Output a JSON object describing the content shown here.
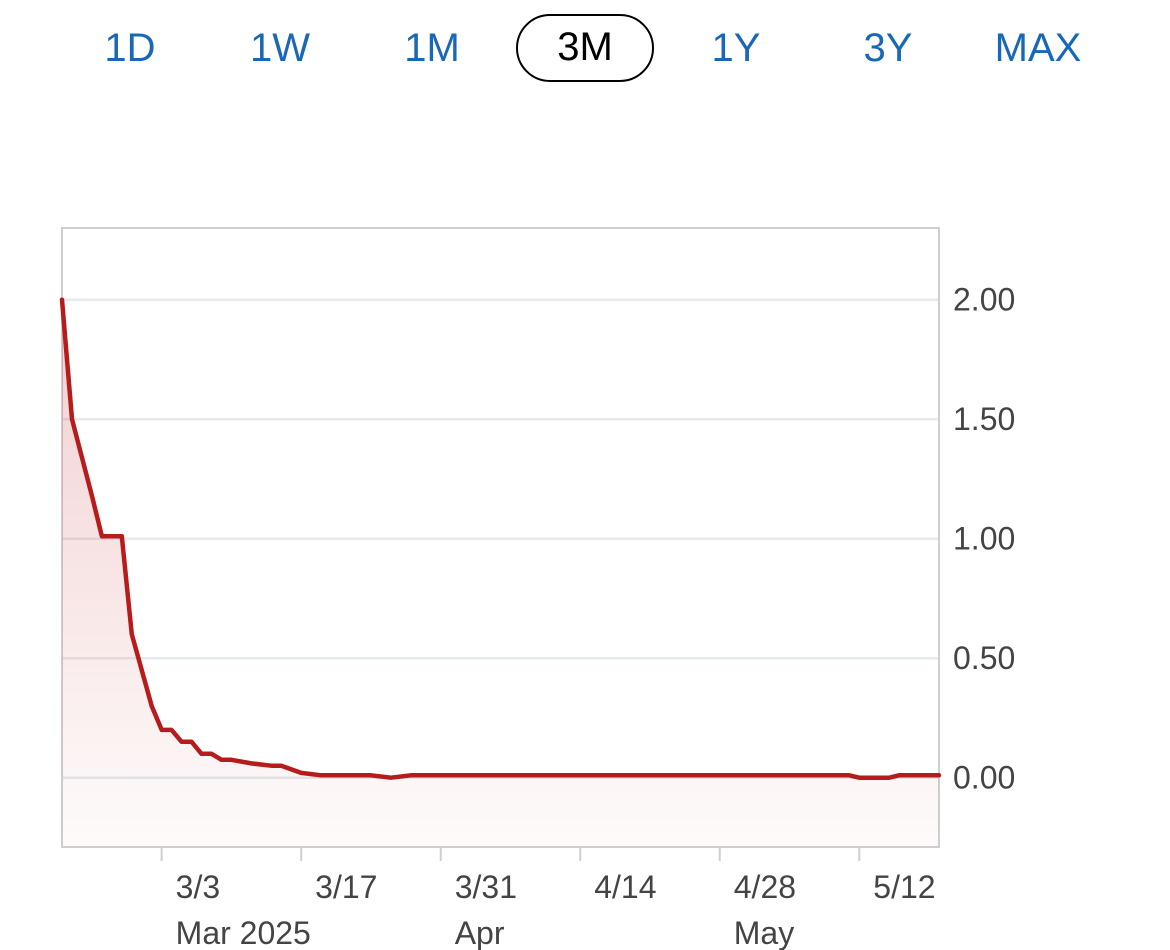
{
  "range_selector": {
    "buttons": [
      "1D",
      "1W",
      "1M",
      "3M",
      "1Y",
      "3Y",
      "MAX"
    ],
    "selected": "3M"
  },
  "colors": {
    "accent": "#1868b7",
    "line": "#b71c1c",
    "gridline": "#e4eaee",
    "frame": "#cfcfcf"
  },
  "chart_data": {
    "type": "area",
    "x_unit": "date",
    "y_axis_position": "right",
    "ylim": [
      -0.29,
      2.3
    ],
    "yticks": [
      "2.00",
      "1.50",
      "1.00",
      "0.50",
      "0.00"
    ],
    "ytick_values": [
      2.0,
      1.5,
      1.0,
      0.5,
      0.0
    ],
    "xticks": [
      {
        "date": "2025-03-03",
        "label": "3/3",
        "sublabel": "Mar 2025"
      },
      {
        "date": "2025-03-17",
        "label": "3/17",
        "sublabel": ""
      },
      {
        "date": "2025-03-31",
        "label": "3/31",
        "sublabel": "Apr"
      },
      {
        "date": "2025-04-14",
        "label": "4/14",
        "sublabel": ""
      },
      {
        "date": "2025-04-28",
        "label": "4/28",
        "sublabel": "May"
      },
      {
        "date": "2025-05-12",
        "label": "5/12",
        "sublabel": ""
      }
    ],
    "xlim": [
      "2025-02-21",
      "2025-05-20"
    ],
    "grid": true,
    "series": [
      {
        "x": [
          "2025-02-21",
          "2025-02-22",
          "2025-02-24",
          "2025-02-25",
          "2025-02-27",
          "2025-02-28",
          "2025-03-02",
          "2025-03-03",
          "2025-03-04",
          "2025-03-05",
          "2025-03-06",
          "2025-03-07",
          "2025-03-08",
          "2025-03-09",
          "2025-03-10",
          "2025-03-12",
          "2025-03-14",
          "2025-03-15",
          "2025-03-17",
          "2025-03-19",
          "2025-03-24",
          "2025-03-26",
          "2025-03-28",
          "2025-04-10",
          "2025-05-01",
          "2025-05-11",
          "2025-05-12",
          "2025-05-15",
          "2025-05-16",
          "2025-05-20"
        ],
        "y": [
          2.0,
          1.5,
          1.18,
          1.01,
          1.01,
          0.6,
          0.3,
          0.2,
          0.2,
          0.15,
          0.15,
          0.1,
          0.1,
          0.075,
          0.075,
          0.06,
          0.05,
          0.05,
          0.02,
          0.01,
          0.01,
          0.0,
          0.01,
          0.01,
          0.01,
          0.01,
          0.0,
          0.0,
          0.01,
          0.01
        ]
      }
    ]
  }
}
